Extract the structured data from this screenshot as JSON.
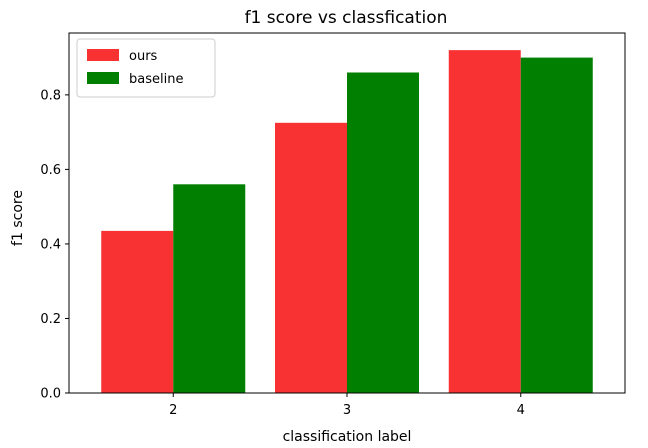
{
  "colors": {
    "ours": "#f83232",
    "baseline": "#007f00",
    "axis": "#000000",
    "legend_border": "#cccccc",
    "background": "#ffffff"
  },
  "chart_data": {
    "type": "bar",
    "title": "f1 score vs classfication",
    "xlabel": "classification label",
    "ylabel": "f1 score",
    "categories": [
      "2",
      "3",
      "4"
    ],
    "series": [
      {
        "name": "ours",
        "values": [
          0.435,
          0.725,
          0.92
        ]
      },
      {
        "name": "baseline",
        "values": [
          0.56,
          0.86,
          0.9
        ]
      }
    ],
    "ylim": [
      0,
      0.966
    ],
    "yticks": [
      0.0,
      0.2,
      0.4,
      0.6,
      0.8
    ],
    "ytick_labels": [
      "0.0",
      "0.2",
      "0.4",
      "0.6",
      "0.8"
    ],
    "grid": false,
    "legend": {
      "placement": "top-left"
    }
  }
}
